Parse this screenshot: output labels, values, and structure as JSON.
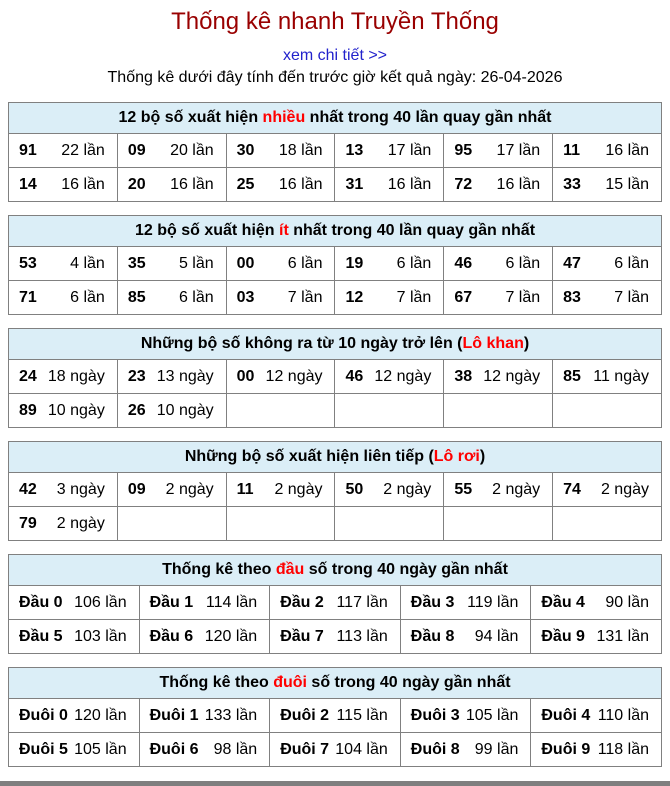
{
  "page": {
    "title": "Thống kê nhanh Truyền Thống",
    "detail_link": "xem chi tiết >>",
    "date_note": "Thống kê dưới đây tính đến trước giờ kết quả ngày: 26-04-2026"
  },
  "colors": {
    "title": "#990000",
    "link": "#2222cc",
    "red": "#ff0000",
    "header_bg": "#dbeef7",
    "border": "#808080",
    "bottom_bar": "#7f7f7f"
  },
  "tables": [
    {
      "name": "most-frequent",
      "header_parts": [
        {
          "t": "12 bộ số xuất hiện "
        },
        {
          "t": "nhiều",
          "red": true
        },
        {
          "t": " nhất trong 40 lần quay gần nhất"
        }
      ],
      "columns": 6,
      "rows": [
        [
          [
            "91",
            "22 lần"
          ],
          [
            "09",
            "20 lần"
          ],
          [
            "30",
            "18 lần"
          ],
          [
            "13",
            "17 lần"
          ],
          [
            "95",
            "17 lần"
          ],
          [
            "11",
            "16 lần"
          ]
        ],
        [
          [
            "14",
            "16 lần"
          ],
          [
            "20",
            "16 lần"
          ],
          [
            "25",
            "16 lần"
          ],
          [
            "31",
            "16 lần"
          ],
          [
            "72",
            "16 lần"
          ],
          [
            "33",
            "15 lần"
          ]
        ]
      ]
    },
    {
      "name": "least-frequent",
      "header_parts": [
        {
          "t": "12 bộ số xuất hiện "
        },
        {
          "t": "ít",
          "red": true
        },
        {
          "t": " nhất trong 40 lần quay gần nhất"
        }
      ],
      "columns": 6,
      "rows": [
        [
          [
            "53",
            "4 lần"
          ],
          [
            "35",
            "5 lần"
          ],
          [
            "00",
            "6 lần"
          ],
          [
            "19",
            "6 lần"
          ],
          [
            "46",
            "6 lần"
          ],
          [
            "47",
            "6 lần"
          ]
        ],
        [
          [
            "71",
            "6 lần"
          ],
          [
            "85",
            "6 lần"
          ],
          [
            "03",
            "7 lần"
          ],
          [
            "12",
            "7 lần"
          ],
          [
            "67",
            "7 lần"
          ],
          [
            "83",
            "7 lần"
          ]
        ]
      ]
    },
    {
      "name": "lo-khan",
      "header_parts": [
        {
          "t": "Những bộ số không ra từ 10 ngày trở lên ("
        },
        {
          "t": "Lô khan",
          "red": true
        },
        {
          "t": ")"
        }
      ],
      "columns": 6,
      "rows": [
        [
          [
            "24",
            "18 ngày"
          ],
          [
            "23",
            "13 ngày"
          ],
          [
            "00",
            "12 ngày"
          ],
          [
            "46",
            "12 ngày"
          ],
          [
            "38",
            "12 ngày"
          ],
          [
            "85",
            "11 ngày"
          ]
        ],
        [
          [
            "89",
            "10 ngày"
          ],
          [
            "26",
            "10 ngày"
          ],
          null,
          null,
          null,
          null
        ]
      ]
    },
    {
      "name": "lo-roi",
      "header_parts": [
        {
          "t": "Những bộ số xuất hiện liên tiếp ("
        },
        {
          "t": "Lô rơi",
          "red": true
        },
        {
          "t": ")"
        }
      ],
      "columns": 6,
      "rows": [
        [
          [
            "42",
            "3 ngày"
          ],
          [
            "09",
            "2 ngày"
          ],
          [
            "11",
            "2 ngày"
          ],
          [
            "50",
            "2 ngày"
          ],
          [
            "55",
            "2 ngày"
          ],
          [
            "74",
            "2 ngày"
          ]
        ],
        [
          [
            "79",
            "2 ngày"
          ],
          null,
          null,
          null,
          null,
          null
        ]
      ]
    },
    {
      "name": "dau",
      "header_parts": [
        {
          "t": "Thống kê theo "
        },
        {
          "t": "đầu",
          "red": true
        },
        {
          "t": " số trong 40 ngày gần nhất"
        }
      ],
      "columns": 5,
      "rows": [
        [
          [
            "Đầu 0",
            "106 lần"
          ],
          [
            "Đầu 1",
            "114 lần"
          ],
          [
            "Đầu 2",
            "117 lần"
          ],
          [
            "Đầu 3",
            "119 lần"
          ],
          [
            "Đầu 4",
            "90 lần"
          ]
        ],
        [
          [
            "Đầu 5",
            "103 lần"
          ],
          [
            "Đầu 6",
            "120 lần"
          ],
          [
            "Đầu 7",
            "113 lần"
          ],
          [
            "Đầu 8",
            "94 lần"
          ],
          [
            "Đầu 9",
            "131 lần"
          ]
        ]
      ]
    },
    {
      "name": "duoi",
      "header_parts": [
        {
          "t": "Thống kê theo "
        },
        {
          "t": "đuôi",
          "red": true
        },
        {
          "t": " số trong 40 ngày gần nhất"
        }
      ],
      "columns": 5,
      "rows": [
        [
          [
            "Đuôi 0",
            "120 lần"
          ],
          [
            "Đuôi 1",
            "133 lần"
          ],
          [
            "Đuôi 2",
            "115 lần"
          ],
          [
            "Đuôi 3",
            "105 lần"
          ],
          [
            "Đuôi 4",
            "110 lần"
          ]
        ],
        [
          [
            "Đuôi 5",
            "105 lần"
          ],
          [
            "Đuôi 6",
            "98 lần"
          ],
          [
            "Đuôi 7",
            "104 lần"
          ],
          [
            "Đuôi 8",
            "99 lần"
          ],
          [
            "Đuôi 9",
            "118 lần"
          ]
        ]
      ]
    }
  ]
}
